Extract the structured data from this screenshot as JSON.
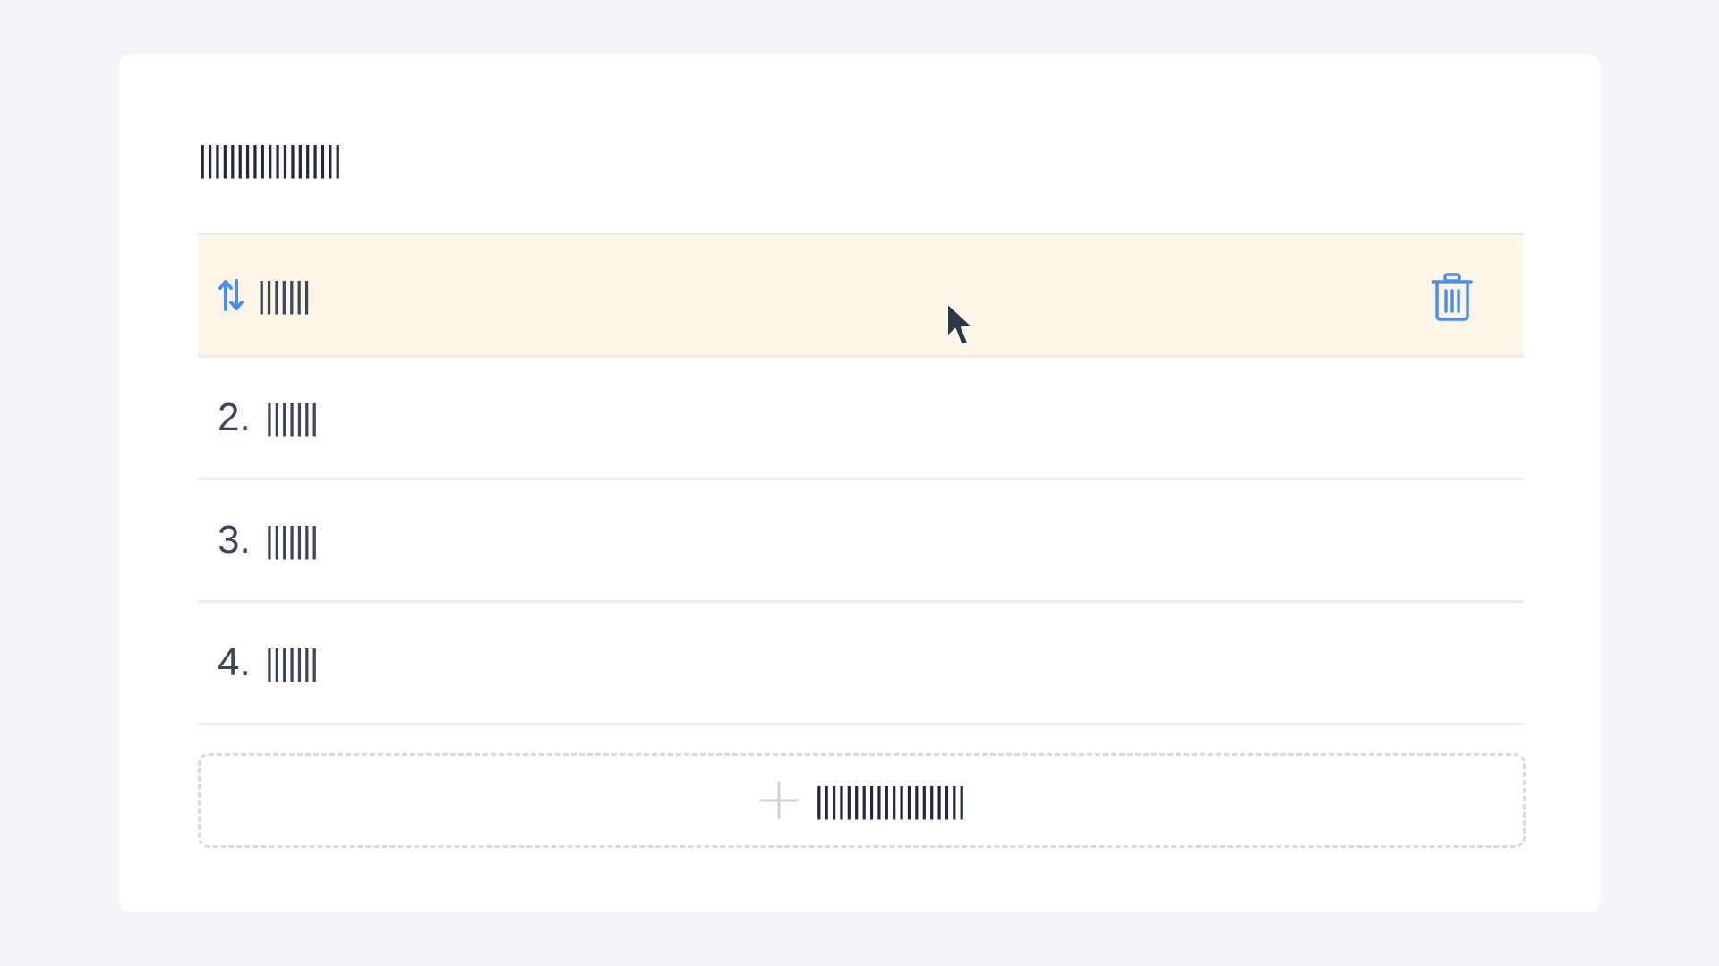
{
  "colors": {
    "page_background": "#f2f5f8",
    "card_background": "#ffffff",
    "accent": "#4b8ef0",
    "active_row": "#fdf5e8",
    "text_primary": "#1f2937",
    "text_secondary": "#3b465a",
    "divider": "#e9ebee",
    "dashed_border": "#d7dade"
  },
  "section": {
    "title": "|||||||||||||||||||"
  },
  "list": {
    "items": [
      {
        "number": "",
        "label": "|||||||",
        "icon": "sort-arrows-icon",
        "active": true,
        "action_icon": "trash-icon"
      },
      {
        "number": "2.",
        "label": "|||||||",
        "active": false
      },
      {
        "number": "3.",
        "label": "|||||||",
        "active": false
      },
      {
        "number": "4.",
        "label": "|||||||",
        "active": false
      }
    ]
  },
  "add_button": {
    "icon": "plus-icon",
    "label": "||||||||||||||||||||"
  },
  "cursor": {
    "icon": "mouse-pointer-icon"
  }
}
